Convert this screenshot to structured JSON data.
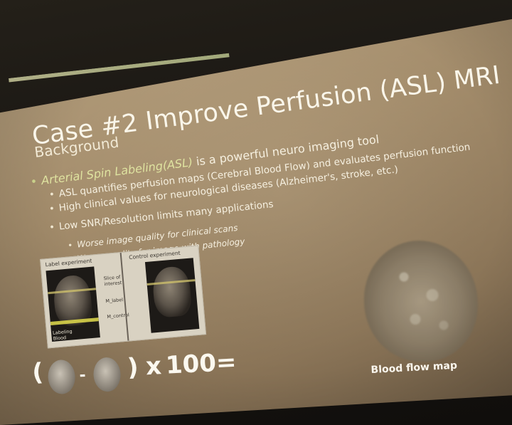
{
  "slide": {
    "title": "Case #2 Improve Perfusion (ASL) MRI",
    "subtitle": "Background",
    "bullet_main_italic": "Arterial Spin Labeling(ASL)",
    "bullet_main_rest": " is a powerful neuro imaging tool",
    "bullet_2": "ASL quantifies perfusion maps (Cerebral Blood Flow) and evaluates perfusion function",
    "bullet_3": "High clinical values for neurological diseases (Alzheimer's, stroke, etc.)",
    "bullet_4": "Low SNR/Resolution limits many applications",
    "bullet_4a": "Worse image quality for clinical scans",
    "bullet_4b": "Worse quality for image with pathology",
    "bullet_glyph": "•"
  },
  "figure": {
    "label_left": "Label experiment",
    "label_right": "Control experiment",
    "mid_text_1": "Slice of",
    "mid_text_2": "interest",
    "mid_text_3": "M_label",
    "mid_text_4": "M_control",
    "bottom_left_1": "Labeling",
    "bottom_left_2": "Blood"
  },
  "brain_map": {
    "caption": "Blood flow map"
  },
  "equation": {
    "paren_open": "(",
    "minus": "-",
    "paren_close": ")",
    "times": "x",
    "result": "100="
  },
  "colors": {
    "screen": "#a38c6b",
    "title_text": "#faf6ea",
    "accent_bullet": "#c9d18a",
    "accent_bar": "#c9c99a"
  }
}
